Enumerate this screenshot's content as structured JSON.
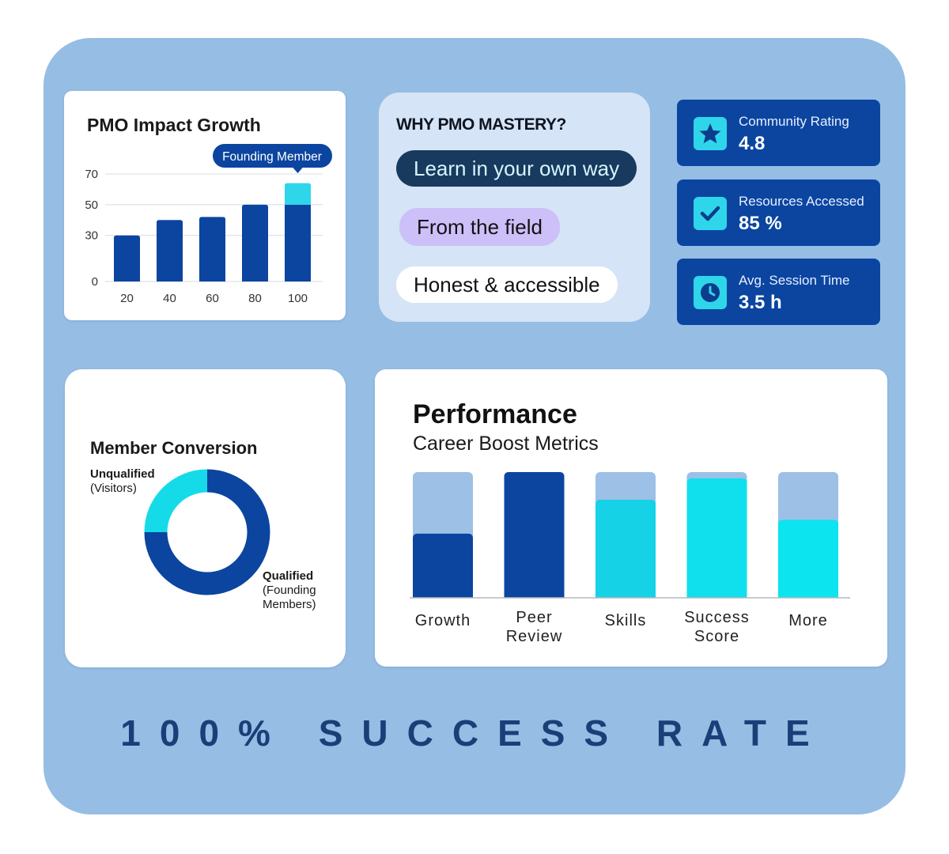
{
  "tagline": "100% SUCCESS RATE",
  "impact": {
    "title": "PMO Impact Growth",
    "callout": "Founding Member"
  },
  "why": {
    "title": "WHY PMO MASTERY?",
    "pills": [
      "Learn in your own way",
      "From the field",
      "Honest & accessible"
    ]
  },
  "stats": [
    {
      "label": "Community Rating",
      "value": "4.8",
      "icon": "star-icon"
    },
    {
      "label": "Resources Accessed",
      "value": "85 %",
      "icon": "check-icon"
    },
    {
      "label": "Avg. Session Time",
      "value": "3.5 h",
      "icon": "clock-icon"
    }
  ],
  "conversion": {
    "title": "Member Conversion",
    "unqualified_title": "Unqualified",
    "unqualified_sub": "(Visitors)",
    "qualified_title": "Qualified",
    "qualified_sub_1": "(Founding",
    "qualified_sub_2": "Members)"
  },
  "performance": {
    "title": "Performance",
    "subtitle": "Career Boost Metrics"
  },
  "colors": {
    "navy": "#0b45a0",
    "cyan": "#2fd6ea",
    "bright_cyan": "#0ce4ef",
    "light_blue": "#96bde4",
    "tagline": "#1a3f78"
  },
  "chart_data": [
    {
      "type": "bar",
      "title": "PMO Impact Growth",
      "categories": [
        "20",
        "40",
        "60",
        "80",
        "100"
      ],
      "values": [
        30,
        40,
        42,
        50,
        64
      ],
      "highlight": {
        "category": "100",
        "base": 50,
        "extra": 14,
        "label": "Founding Member"
      },
      "y_ticks": [
        0,
        30,
        50,
        70
      ],
      "ylim": [
        0,
        70
      ],
      "grid": true
    },
    {
      "type": "pie",
      "title": "Member Conversion",
      "labels": [
        "Qualified (Founding Members)",
        "Unqualified (Visitors)"
      ],
      "values": [
        75,
        25
      ],
      "colors": [
        "#0b45a0",
        "#15dbe8"
      ],
      "donut": true
    },
    {
      "type": "bar",
      "title": "Performance",
      "subtitle": "Career Boost Metrics",
      "categories": [
        [
          "Growth"
        ],
        [
          "Peer",
          "Review"
        ],
        [
          "Skills"
        ],
        [
          "Success",
          "Score"
        ],
        [
          "More"
        ]
      ],
      "values": [
        51,
        100,
        78,
        95,
        62
      ],
      "max": 100,
      "colors": [
        "#0b45a0",
        "#0b45a0",
        "#15d2e6",
        "#10dfee",
        "#0ce4ef"
      ]
    }
  ]
}
